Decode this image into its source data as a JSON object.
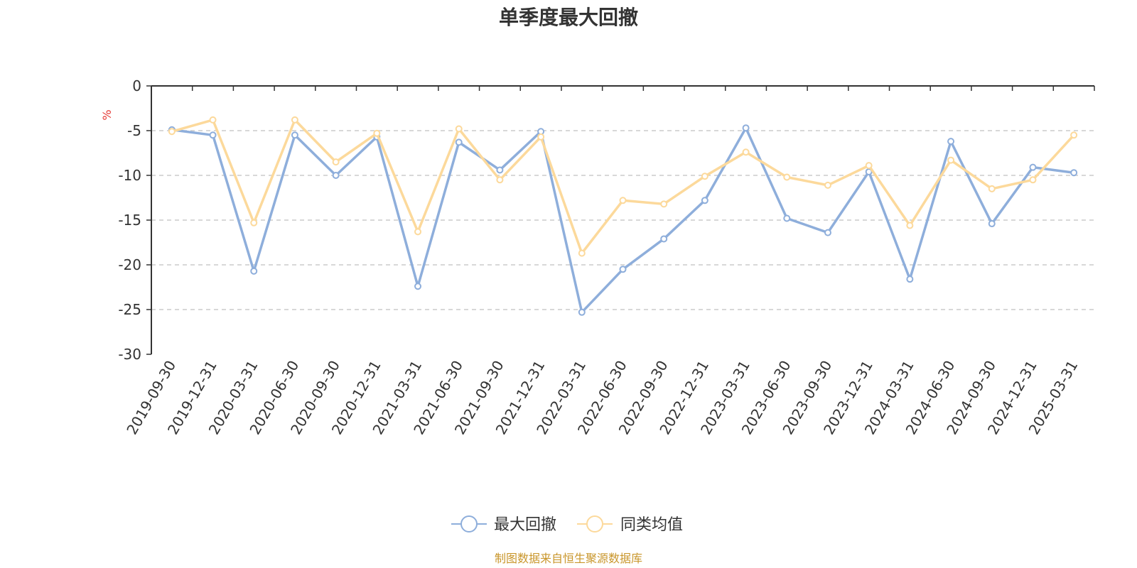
{
  "chart_data": {
    "type": "line",
    "title": "单季度最大回撤",
    "y_unit": "%",
    "ylim": [
      -30,
      0
    ],
    "y_ticks": [
      0,
      -5,
      -10,
      -15,
      -20,
      -25,
      -30
    ],
    "grid": "horizontal-dashed",
    "legend_position": "bottom-center",
    "categories": [
      "2019-09-30",
      "2019-12-31",
      "2020-03-31",
      "2020-06-30",
      "2020-09-30",
      "2020-12-31",
      "2021-03-31",
      "2021-06-30",
      "2021-09-30",
      "2021-12-31",
      "2022-03-31",
      "2022-06-30",
      "2022-09-30",
      "2022-12-31",
      "2023-03-31",
      "2023-06-30",
      "2023-09-30",
      "2023-12-31",
      "2024-03-31",
      "2024-06-30",
      "2024-09-30",
      "2024-12-31",
      "2025-03-31"
    ],
    "series": [
      {
        "name": "最大回撤",
        "color": "#8eaedb",
        "values": [
          -4.9,
          -5.5,
          -20.7,
          -5.5,
          -10.0,
          -5.7,
          -22.4,
          -6.3,
          -9.4,
          -5.1,
          -25.3,
          -20.5,
          -17.1,
          -12.8,
          -4.7,
          -14.8,
          -16.4,
          -9.6,
          -21.6,
          -6.2,
          -15.4,
          -9.1,
          -9.7
        ]
      },
      {
        "name": "同类均值",
        "color": "#fcd99b",
        "values": [
          -5.1,
          -3.8,
          -15.3,
          -3.8,
          -8.5,
          -5.3,
          -16.3,
          -4.8,
          -10.5,
          -5.7,
          -18.7,
          -12.8,
          -13.2,
          -10.1,
          -7.4,
          -10.2,
          -11.1,
          -8.9,
          -15.6,
          -8.3,
          -11.5,
          -10.5,
          -5.5
        ]
      }
    ],
    "source_note": "制图数据来自恒生聚源数据库"
  }
}
